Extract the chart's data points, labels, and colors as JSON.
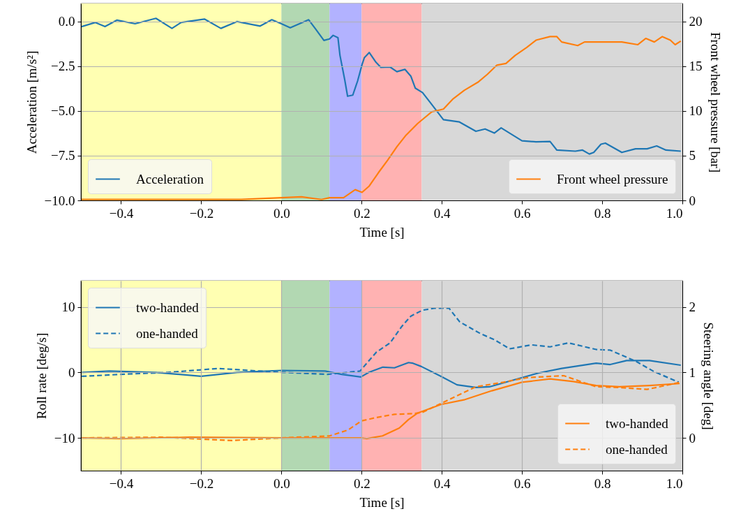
{
  "chart_data": [
    {
      "type": "line",
      "xlabel": "Time [s]",
      "ylabel": "Acceleration [m/s²]",
      "y2label": "Front wheel pressure [bar]",
      "xlim": [
        -0.5,
        1.0
      ],
      "xticks": [
        {
          "value": -0.4,
          "label": "−0.4"
        },
        {
          "value": -0.2,
          "label": "−0.2"
        },
        {
          "value": 0,
          "label": "0.0"
        },
        {
          "value": 0.2,
          "label": "0.2"
        },
        {
          "value": 0.4,
          "label": "0.4"
        },
        {
          "value": 0.6,
          "label": "0.6"
        },
        {
          "value": 0.8,
          "label": "0.8"
        },
        {
          "value": 1.0,
          "label": "1.0"
        }
      ],
      "ylim": [
        -10,
        1
      ],
      "yticks": [
        {
          "value": -10,
          "label": "−10.0"
        },
        {
          "value": -7.5,
          "label": "−7.5"
        },
        {
          "value": -5,
          "label": "−5.0"
        },
        {
          "value": -2.5,
          "label": "−2.5"
        },
        {
          "value": 0,
          "label": "0.0"
        }
      ],
      "y2lim": [
        0,
        22
      ],
      "y2ticks": [
        0,
        5,
        10,
        15,
        20
      ],
      "grid": "y",
      "legend": [
        "bottom left",
        "bottom right"
      ],
      "bands": [
        {
          "axis": "x",
          "from": -0.5,
          "to": 0,
          "color": "#ffffb2"
        },
        {
          "axis": "x",
          "from": 0,
          "to": 0.12,
          "color": "#b2d8b2"
        },
        {
          "axis": "x",
          "from": 0.12,
          "to": 0.2,
          "color": "#b2b2ff"
        },
        {
          "axis": "x",
          "from": 0.2,
          "to": 0.35,
          "color": "#ffb2b2"
        },
        {
          "axis": "x",
          "from": 0.35,
          "to": 1.0,
          "color": "#d8d8d8"
        }
      ],
      "series": [
        {
          "name": "Acceleration",
          "color": "#1f77b4",
          "line_style": "solid",
          "x": [
            -0.5,
            -0.464,
            -0.44,
            -0.41,
            -0.365,
            -0.313,
            -0.273,
            -0.25,
            -0.192,
            -0.151,
            -0.111,
            -0.053,
            -0.024,
            0.0,
            0.022,
            0.045,
            0.068,
            0.086,
            0.106,
            0.12,
            0.129,
            0.141,
            0.146,
            0.158,
            0.165,
            0.178,
            0.19,
            0.201,
            0.207,
            0.219,
            0.236,
            0.248,
            0.271,
            0.288,
            0.308,
            0.323,
            0.334,
            0.352,
            0.375,
            0.404,
            0.444,
            0.485,
            0.508,
            0.531,
            0.548,
            0.6,
            0.635,
            0.67,
            0.687,
            0.733,
            0.751,
            0.768,
            0.779,
            0.797,
            0.808,
            0.849,
            0.883,
            0.912,
            0.936,
            0.959,
            0.996
          ],
          "values": [
            -0.3,
            -0.06,
            -0.29,
            0.07,
            -0.13,
            0.17,
            -0.39,
            -0.06,
            0.13,
            -0.39,
            -0.01,
            -0.26,
            0.09,
            -0.13,
            -0.36,
            -0.13,
            0.09,
            -0.45,
            -1.06,
            -0.98,
            -0.78,
            -0.91,
            -1.89,
            -3.27,
            -4.18,
            -4.12,
            -3.33,
            -2.42,
            -2.02,
            -1.74,
            -2.29,
            -2.57,
            -2.55,
            -2.81,
            -2.68,
            -3.07,
            -3.73,
            -3.98,
            -4.64,
            -5.49,
            -5.62,
            -6.14,
            -6.01,
            -6.24,
            -5.95,
            -6.67,
            -6.73,
            -6.71,
            -7.19,
            -7.25,
            -7.19,
            -7.41,
            -7.32,
            -6.86,
            -6.8,
            -7.32,
            -7.12,
            -7.12,
            -6.96,
            -7.19,
            -7.25
          ]
        },
        {
          "name": "Front wheel pressure",
          "color": "#ff7f0e",
          "axis": "y2",
          "line_style": "solid",
          "x": [
            -0.5,
            -0.3,
            -0.1,
            0.05,
            0.1,
            0.12,
            0.155,
            0.184,
            0.201,
            0.219,
            0.242,
            0.265,
            0.288,
            0.311,
            0.34,
            0.375,
            0.404,
            0.427,
            0.456,
            0.49,
            0.514,
            0.537,
            0.56,
            0.583,
            0.612,
            0.635,
            0.67,
            0.687,
            0.699,
            0.739,
            0.756,
            0.808,
            0.849,
            0.889,
            0.909,
            0.93,
            0.95,
            0.97,
            0.982,
            0.996
          ],
          "values": [
            0.1,
            0.1,
            0.1,
            0.4,
            0.1,
            0.3,
            0.3,
            1.2,
            0.9,
            1.6,
            3.1,
            4.5,
            6.0,
            7.3,
            8.6,
            9.9,
            10.2,
            11.3,
            12.3,
            13.2,
            14.1,
            15.1,
            15.3,
            16.2,
            17.1,
            17.9,
            18.3,
            18.3,
            17.7,
            17.3,
            17.7,
            17.7,
            17.7,
            17.4,
            18.1,
            17.7,
            18.3,
            17.9,
            17.4,
            17.8
          ]
        }
      ]
    },
    {
      "type": "line",
      "xlabel": "Time [s]",
      "ylabel": "Roll rate [deg/s]",
      "y2label": "Steering angle [deg]",
      "xlim": [
        -0.5,
        1.0
      ],
      "xticks": [
        {
          "value": -0.4,
          "label": "−0.4"
        },
        {
          "value": -0.2,
          "label": "−0.2"
        },
        {
          "value": 0,
          "label": "0.0"
        },
        {
          "value": 0.2,
          "label": "0.2"
        },
        {
          "value": 0.4,
          "label": "0.4"
        },
        {
          "value": 0.6,
          "label": "0.6"
        },
        {
          "value": 0.8,
          "label": "0.8"
        },
        {
          "value": 1.0,
          "label": "1.0"
        }
      ],
      "ylim": [
        -15,
        14
      ],
      "yticks": [
        {
          "value": -10,
          "label": "−10"
        },
        0,
        10
      ],
      "y2lim": [
        -0.5,
        2.4
      ],
      "y2ticks": [
        0,
        1,
        2
      ],
      "grid": true,
      "legend": [
        "top left",
        "bottom right"
      ],
      "bands": [
        {
          "axis": "x",
          "from": -0.5,
          "to": 0,
          "color": "#ffffb2"
        },
        {
          "axis": "x",
          "from": 0,
          "to": 0.12,
          "color": "#b2d8b2"
        },
        {
          "axis": "x",
          "from": 0.12,
          "to": 0.2,
          "color": "#b2b2ff"
        },
        {
          "axis": "x",
          "from": 0.2,
          "to": 0.35,
          "color": "#ffb2b2"
        },
        {
          "axis": "x",
          "from": 0.35,
          "to": 1.0,
          "color": "#d8d8d8"
        }
      ],
      "series": [
        {
          "name": "two-handed",
          "color": "#1f77b4",
          "line_style": "solid",
          "x": [
            -0.498,
            -0.429,
            -0.313,
            -0.2,
            -0.111,
            0.0,
            0.109,
            0.15,
            0.198,
            0.218,
            0.253,
            0.282,
            0.317,
            0.328,
            0.349,
            0.398,
            0.438,
            0.485,
            0.519,
            0.571,
            0.641,
            0.699,
            0.785,
            0.82,
            0.861,
            0.918,
            0.996
          ],
          "values": [
            0,
            0.2,
            0,
            -0.6,
            0,
            0.3,
            0.2,
            -0.3,
            -0.7,
            0,
            0.8,
            0.7,
            1.5,
            1.4,
            0.9,
            -0.6,
            -1.9,
            -2.3,
            -2.2,
            -1.3,
            -0.1,
            0.6,
            1.4,
            1.2,
            1.8,
            1.8,
            1.1
          ]
        },
        {
          "name": "one-handed",
          "color": "#1f77b4",
          "line_style": "dashed",
          "x": [
            -0.498,
            -0.4,
            -0.284,
            -0.157,
            -0.053,
            0.005,
            0.115,
            0.196,
            0.237,
            0.271,
            0.3,
            0.323,
            0.352,
            0.381,
            0.418,
            0.445,
            0.497,
            0.531,
            0.569,
            0.624,
            0.67,
            0.716,
            0.785,
            0.82,
            0.884,
            0.93,
            0.991
          ],
          "values": [
            -0.6,
            -0.3,
            0,
            0.6,
            0.2,
            0,
            -0.3,
            0.2,
            3.1,
            4.5,
            7.0,
            8.6,
            9.5,
            9.8,
            9.8,
            7.7,
            5.9,
            5.0,
            3.6,
            4.2,
            3.9,
            4.5,
            3.5,
            3.4,
            1.7,
            0.1,
            -1.5
          ]
        },
        {
          "name": "two-handed",
          "color": "#ff7f0e",
          "axis": "y2",
          "line_style": "solid",
          "x": [
            -0.498,
            -0.4,
            -0.23,
            0.005,
            0.2,
            0.213,
            0.252,
            0.294,
            0.317,
            0.34,
            0.398,
            0.455,
            0.525,
            0.6,
            0.67,
            0.728,
            0.785,
            0.843,
            0.918,
            0.993
          ],
          "values": [
            0,
            -0.01,
            0.01,
            0,
            0,
            -0.01,
            0.03,
            0.15,
            0.28,
            0.38,
            0.51,
            0.58,
            0.72,
            0.85,
            0.9,
            0.86,
            0.8,
            0.78,
            0.8,
            0.83
          ]
        },
        {
          "name": "one-handed",
          "color": "#ff7f0e",
          "axis": "y2",
          "line_style": "dashed",
          "x": [
            -0.498,
            -0.3,
            -0.123,
            0.0,
            0.12,
            0.166,
            0.2,
            0.236,
            0.282,
            0.329,
            0.352,
            0.41,
            0.485,
            0.554,
            0.612,
            0.704,
            0.785,
            0.843,
            0.912,
            0.996
          ],
          "values": [
            0,
            0.01,
            -0.04,
            0,
            0.03,
            0.12,
            0.26,
            0.31,
            0.36,
            0.37,
            0.39,
            0.56,
            0.78,
            0.85,
            0.92,
            0.95,
            0.78,
            0.77,
            0.74,
            0.85
          ]
        }
      ]
    }
  ]
}
